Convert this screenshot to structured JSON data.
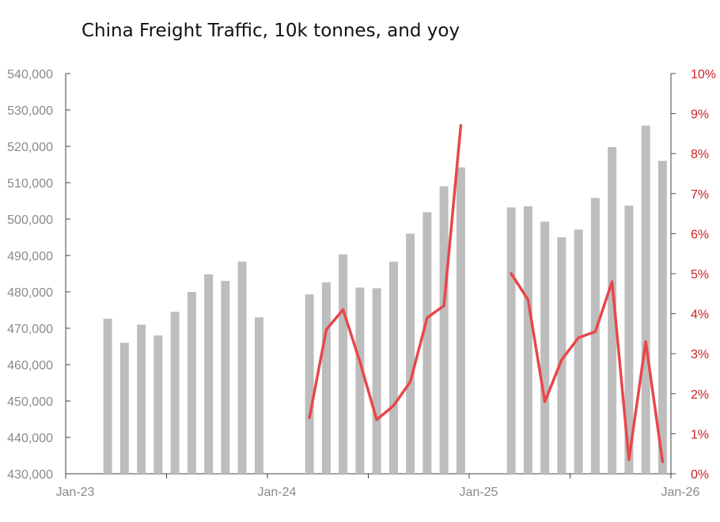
{
  "chart_data": {
    "title": "China Freight Traffic, 10k tonnes, and yoy",
    "type": "bar+line",
    "colors": {
      "bars": "#bdbdbd",
      "line": "#e8474a",
      "left_axis": "#8a8a8a",
      "right_axis": "#cc2222"
    },
    "left_axis": {
      "ylim": [
        430000,
        540000
      ],
      "ticks": [
        "430,000",
        "440,000",
        "450,000",
        "460,000",
        "470,000",
        "480,000",
        "490,000",
        "500,000",
        "510,000",
        "520,000",
        "530,000",
        "540,000"
      ]
    },
    "right_axis": {
      "ylim": [
        0,
        10
      ],
      "ticks": [
        "0%",
        "1%",
        "2%",
        "3%",
        "4%",
        "5%",
        "6%",
        "7%",
        "8%",
        "9%",
        "10%"
      ]
    },
    "x_axis": {
      "ticks": [
        "Jan-23",
        "Jan-24",
        "Jan-25",
        "Jan-26"
      ]
    },
    "series": [
      {
        "name": "Freight traffic",
        "type": "bar",
        "data": [
          [
            "2023-03",
            472600
          ],
          [
            "2023-04",
            466000
          ],
          [
            "2023-05",
            471000
          ],
          [
            "2023-06",
            468000
          ],
          [
            "2023-07",
            474500
          ],
          [
            "2023-08",
            480000
          ],
          [
            "2023-09",
            484800
          ],
          [
            "2023-10",
            483000
          ],
          [
            "2023-11",
            488300
          ],
          [
            "2023-12",
            473000
          ],
          [
            "2024-03",
            479300
          ],
          [
            "2024-04",
            482600
          ],
          [
            "2024-05",
            490300
          ],
          [
            "2024-06",
            481200
          ],
          [
            "2024-07",
            481000
          ],
          [
            "2024-08",
            488300
          ],
          [
            "2024-09",
            496000
          ],
          [
            "2024-10",
            501900
          ],
          [
            "2024-11",
            509000
          ],
          [
            "2024-12",
            514200
          ],
          [
            "2025-03",
            503200
          ],
          [
            "2025-04",
            503500
          ],
          [
            "2025-05",
            499300
          ],
          [
            "2025-06",
            495000
          ],
          [
            "2025-07",
            497100
          ],
          [
            "2025-08",
            505800
          ],
          [
            "2025-09",
            519800
          ],
          [
            "2025-10",
            503700
          ],
          [
            "2025-11",
            525700
          ],
          [
            "2025-12",
            516000
          ]
        ]
      },
      {
        "name": "yoy",
        "type": "line",
        "data": [
          [
            "2024-03",
            1.4
          ],
          [
            "2024-04",
            3.6
          ],
          [
            "2024-05",
            4.1
          ],
          [
            "2024-06",
            2.8
          ],
          [
            "2024-07",
            1.35
          ],
          [
            "2024-08",
            1.7
          ],
          [
            "2024-09",
            2.3
          ],
          [
            "2024-10",
            3.9
          ],
          [
            "2024-11",
            4.2
          ],
          [
            "2024-12",
            8.7
          ]
        ]
      },
      {
        "name": "yoy",
        "type": "line",
        "data": [
          [
            "2025-03",
            5.0
          ],
          [
            "2025-04",
            4.35
          ],
          [
            "2025-05",
            1.8
          ],
          [
            "2025-06",
            2.85
          ],
          [
            "2025-07",
            3.4
          ],
          [
            "2025-08",
            3.55
          ],
          [
            "2025-09",
            4.8
          ],
          [
            "2025-10",
            0.35
          ],
          [
            "2025-11",
            3.3
          ],
          [
            "2025-12",
            0.3
          ]
        ]
      }
    ]
  }
}
